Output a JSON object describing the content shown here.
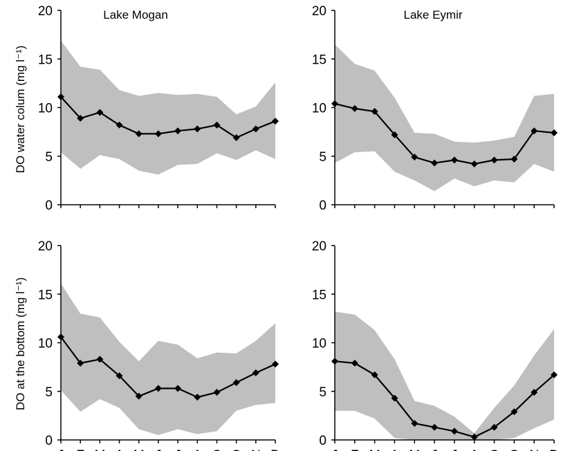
{
  "chart_data": [
    {
      "type": "line",
      "panel": "top-left",
      "title": "Lake Mogan",
      "ylabel": "DO water colum (mg l⁻¹)",
      "xlabel": "",
      "categories": [
        "J",
        "F",
        "M",
        "A",
        "M",
        "J",
        "J",
        "A",
        "S",
        "O",
        "N",
        "D"
      ],
      "yticks": [
        "0",
        "5",
        "10",
        "15",
        "20"
      ],
      "ylim": [
        0,
        20
      ],
      "series": [
        {
          "values": [
            11.1,
            8.9,
            9.5,
            8.2,
            7.3,
            7.3,
            7.6,
            7.8,
            8.2,
            6.9,
            7.8,
            8.6
          ]
        }
      ],
      "band": {
        "upper": [
          16.9,
          14.2,
          13.9,
          11.8,
          11.2,
          11.5,
          11.3,
          11.4,
          11.1,
          9.3,
          10.1,
          12.6
        ],
        "lower": [
          5.4,
          3.7,
          5.1,
          4.7,
          3.5,
          3.1,
          4.1,
          4.2,
          5.3,
          4.6,
          5.6,
          4.7
        ]
      },
      "band_color": "#bfbfbf",
      "line_color": "#000000"
    },
    {
      "type": "line",
      "panel": "top-right",
      "title": "Lake Eymir",
      "ylabel": "",
      "xlabel": "",
      "categories": [
        "J",
        "F",
        "M",
        "A",
        "M",
        "J",
        "J",
        "A",
        "S",
        "O",
        "N",
        "D"
      ],
      "yticks": [
        "0",
        "5",
        "10",
        "15",
        "20"
      ],
      "ylim": [
        0,
        20
      ],
      "series": [
        {
          "values": [
            10.4,
            9.9,
            9.6,
            7.2,
            4.9,
            4.3,
            4.6,
            4.2,
            4.6,
            4.7,
            7.6,
            7.4
          ]
        }
      ],
      "band": {
        "upper": [
          16.5,
          14.5,
          13.8,
          11.0,
          7.4,
          7.3,
          6.5,
          6.4,
          6.6,
          7.0,
          11.2,
          11.4
        ],
        "lower": [
          4.3,
          5.4,
          5.5,
          3.4,
          2.5,
          1.4,
          2.7,
          1.9,
          2.5,
          2.3,
          4.2,
          3.4
        ]
      },
      "band_color": "#bfbfbf",
      "line_color": "#000000"
    },
    {
      "type": "line",
      "panel": "bottom-left",
      "title": "",
      "ylabel": "DO at the bottom (mg l⁻¹)",
      "xlabel": "",
      "categories": [
        "J",
        "F",
        "M",
        "A",
        "M",
        "J",
        "J",
        "A",
        "S",
        "O",
        "N",
        "D"
      ],
      "yticks": [
        "0",
        "5",
        "10",
        "15",
        "20"
      ],
      "ylim": [
        0,
        20
      ],
      "series": [
        {
          "values": [
            10.6,
            7.9,
            8.3,
            6.6,
            4.5,
            5.3,
            5.3,
            4.4,
            4.9,
            5.9,
            6.9,
            7.8
          ]
        }
      ],
      "band": {
        "upper": [
          16.1,
          13.0,
          12.6,
          10.1,
          8.1,
          10.2,
          9.8,
          8.4,
          9.0,
          8.9,
          10.2,
          12.0
        ],
        "lower": [
          5.1,
          2.9,
          4.2,
          3.3,
          1.1,
          0.5,
          1.1,
          0.6,
          0.9,
          3.0,
          3.6,
          3.8
        ]
      },
      "band_color": "#bfbfbf",
      "line_color": "#000000"
    },
    {
      "type": "line",
      "panel": "bottom-right",
      "title": "",
      "ylabel": "",
      "xlabel": "",
      "categories": [
        "J",
        "F",
        "M",
        "A",
        "M",
        "J",
        "J",
        "A",
        "S",
        "O",
        "N",
        "D"
      ],
      "yticks": [
        "0",
        "5",
        "10",
        "15",
        "20"
      ],
      "ylim": [
        0,
        20
      ],
      "series": [
        {
          "values": [
            8.1,
            7.9,
            6.7,
            4.3,
            1.7,
            1.3,
            0.9,
            0.3,
            1.3,
            2.9,
            4.9,
            6.7
          ]
        }
      ],
      "band": {
        "upper": [
          13.2,
          12.9,
          11.3,
          8.3,
          4.0,
          3.5,
          2.4,
          0.7,
          3.3,
          5.6,
          8.7,
          11.4
        ],
        "lower": [
          3.0,
          3.0,
          2.2,
          0.2,
          0.0,
          0.0,
          0.0,
          0.0,
          0.0,
          0.2,
          1.2,
          2.1
        ]
      },
      "band_color": "#bfbfbf",
      "line_color": "#000000"
    }
  ]
}
